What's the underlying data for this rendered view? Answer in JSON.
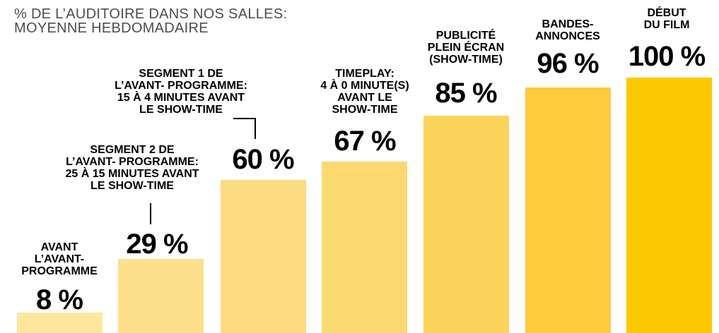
{
  "title_line1": "% DE L’AUDITOIRE DANS NOS SALLES:",
  "title_line2": "MOYENNE HEBDOMADAIRE",
  "chart_data": {
    "type": "bar",
    "ylim": [
      0,
      100
    ],
    "categories": [
      "AVANT L’AVANT-PROGRAMME",
      "SEGMENT 2 DE L’AVANT- PROGRAMME: 25 À 15 MINUTES AVANT LE SHOW-TIME",
      "SEGMENT 1 DE L’AVANT- PROGRAMME: 15 À 4 MINUTES AVANT LE SHOW-TIME",
      "TIMEPLAY: 4 À 0 MINUTE(S) AVANT LE SHOW-TIME",
      "PUBLICITÉ PLEIN ÉCRAN (SHOW-TIME)",
      "BANDES-ANNONCES",
      "DÉBUT DU FILM"
    ],
    "values": [
      8,
      29,
      60,
      67,
      85,
      96,
      100
    ],
    "data_labels": [
      "8 %",
      "29 %",
      "60 %",
      "67 %",
      "85 %",
      "96 %",
      "100 %"
    ],
    "colors": [
      "#fde79e",
      "#fde08b",
      "#fddb80",
      "#fcd870",
      "#fcd45c",
      "#fccc3c",
      "#fcc800"
    ],
    "grid": false,
    "legend": "none"
  }
}
